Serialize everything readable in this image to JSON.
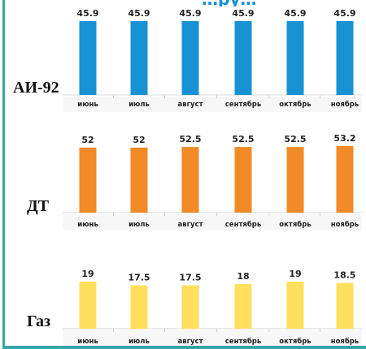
{
  "header_clipped_text": "…ру…",
  "chart_data": [
    {
      "type": "bar",
      "label": "АИ-92",
      "categories": [
        "июнь",
        "июль",
        "август",
        "сентябрь",
        "октябрь",
        "ноябрь"
      ],
      "values": [
        45.9,
        45.9,
        45.9,
        45.9,
        45.9,
        45.9
      ],
      "value_labels": [
        "45.9",
        "45.9",
        "45.9",
        "45.9",
        "45.9",
        "45.9"
      ],
      "color": "#1793d5",
      "grid": false
    },
    {
      "type": "bar",
      "label": "ДТ",
      "categories": [
        "июнь",
        "июль",
        "август",
        "сентябрь",
        "октябрь",
        "ноябрь"
      ],
      "values": [
        52,
        52,
        52.5,
        52.5,
        52.5,
        53.2
      ],
      "value_labels": [
        "52",
        "52",
        "52.5",
        "52.5",
        "52.5",
        "53.2"
      ],
      "color": "#f28a25",
      "grid": false
    },
    {
      "type": "bar",
      "label": "Газ",
      "categories": [
        "июнь",
        "июль",
        "август",
        "сентябрь",
        "октябрь",
        "ноябрь"
      ],
      "values": [
        19,
        17.5,
        17.5,
        18,
        19,
        18.5
      ],
      "value_labels": [
        "19",
        "17.5",
        "17.5",
        "18",
        "19",
        "18.5"
      ],
      "color": "#ffdf5c",
      "grid": false
    }
  ]
}
